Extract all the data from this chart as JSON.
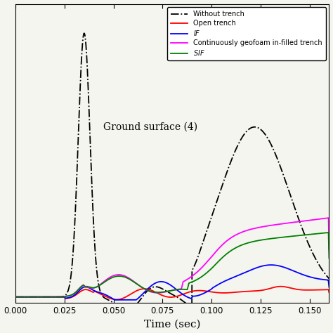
{
  "xlabel": "Time (sec)",
  "annotation": "Ground surface (4)",
  "xmin": 0.0,
  "xmax": 0.16,
  "background_color": "#f5f5f0",
  "legend_entries": [
    {
      "label": "Without trench",
      "color": "black",
      "linestyle": "-."
    },
    {
      "label": "Open trench",
      "color": "red",
      "linestyle": "-"
    },
    {
      "label": "$\\it{IF}$",
      "color": "blue",
      "linestyle": "-"
    },
    {
      "label": "Continuously geofoam in-filled trench",
      "color": "magenta",
      "linestyle": "-"
    },
    {
      "label": "$\\it{SIF}$",
      "color": "green",
      "linestyle": "-"
    }
  ]
}
